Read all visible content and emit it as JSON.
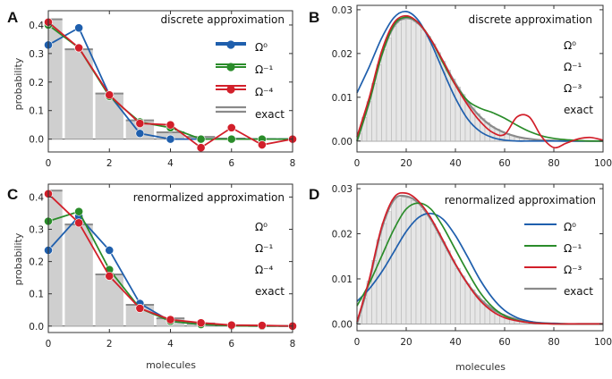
{
  "colors": {
    "omega0": "#1f5fad",
    "omega1": "#2a8c2a",
    "omega3": "#d21f2a",
    "exact": "#8a8a8a",
    "bar_fill": "#cfcfcf",
    "hist_fill": "#e6e6e6"
  },
  "chart_data": [
    {
      "panel": "A",
      "type": "bar",
      "title": "discrete approximation",
      "xlabel": "",
      "ylabel": "probability",
      "xlim": [
        0,
        8
      ],
      "ylim": [
        -0.045,
        0.45
      ],
      "xticks": [
        0,
        2,
        4,
        6,
        8
      ],
      "yticks": [
        0.0,
        0.1,
        0.2,
        0.3,
        0.4
      ],
      "ytick_labels": [
        "0.0",
        "0.1",
        "0.2",
        "0.3",
        "0.4"
      ],
      "bars": {
        "x": [
          0,
          1,
          2,
          3,
          4,
          5,
          6,
          7,
          8
        ],
        "values": [
          0.42,
          0.315,
          0.16,
          0.066,
          0.024,
          0.008,
          0.002,
          0.0005,
          0.0001
        ]
      },
      "series": [
        {
          "name": "Ω⁰",
          "x": [
            0,
            1,
            2,
            3,
            4,
            5,
            6,
            7,
            8
          ],
          "values": [
            0.33,
            0.39,
            0.155,
            0.02,
            0.0,
            0.0,
            0.0,
            0.0,
            0.0
          ]
        },
        {
          "name": "Ω⁻¹",
          "x": [
            0,
            1,
            2,
            3,
            4,
            5,
            6,
            7,
            8
          ],
          "values": [
            0.4,
            0.32,
            0.15,
            0.06,
            0.04,
            0.0,
            0.0,
            0.0,
            0.0
          ]
        },
        {
          "name": "Ω⁻⁴",
          "x": [
            0,
            1,
            2,
            3,
            4,
            5,
            6,
            7,
            8
          ],
          "values": [
            0.41,
            0.32,
            0.155,
            0.055,
            0.05,
            -0.03,
            0.04,
            -0.02,
            0.0
          ]
        }
      ],
      "legend": [
        "Ω⁰",
        "Ω⁻¹",
        "Ω⁻⁴",
        "exact"
      ]
    },
    {
      "panel": "B",
      "type": "line",
      "title": "discrete approximation",
      "xlabel": "",
      "ylabel": "",
      "xlim": [
        0,
        100
      ],
      "ylim": [
        -0.0025,
        0.031
      ],
      "xticks": [
        0,
        20,
        40,
        60,
        80,
        100
      ],
      "yticks": [
        0.0,
        0.01,
        0.02,
        0.03
      ],
      "ytick_labels": [
        "0.00",
        "0.01",
        "0.02",
        "0.03"
      ],
      "x": [
        0,
        5,
        10,
        15,
        20,
        25,
        30,
        35,
        40,
        45,
        50,
        55,
        60,
        65,
        70,
        75,
        80,
        85,
        90,
        95,
        100
      ],
      "series": [
        {
          "name": "Ω⁰",
          "values": [
            0.011,
            0.017,
            0.0235,
            0.0282,
            0.0296,
            0.0275,
            0.0225,
            0.016,
            0.0098,
            0.005,
            0.0022,
            0.0008,
            0.0002,
            0.0,
            0.0,
            0.0,
            0.0,
            0.0,
            0.0,
            0.0,
            0.0
          ]
        },
        {
          "name": "Ω⁻¹",
          "values": [
            0.0,
            0.009,
            0.0195,
            0.0265,
            0.0283,
            0.027,
            0.0232,
            0.0178,
            0.0128,
            0.0092,
            0.0075,
            0.0065,
            0.0052,
            0.0036,
            0.0022,
            0.0012,
            0.0006,
            0.0003,
            0.0001,
            0.0,
            0.0
          ]
        },
        {
          "name": "Ω⁻³",
          "values": [
            0.001,
            0.01,
            0.0205,
            0.027,
            0.0286,
            0.027,
            0.0232,
            0.0182,
            0.0128,
            0.0082,
            0.0045,
            0.002,
            0.0015,
            0.0055,
            0.0055,
            0.001,
            -0.0015,
            -0.0005,
            0.0005,
            0.0008,
            0.0002
          ]
        }
      ],
      "exact": {
        "name": "exact",
        "values": [
          0.0,
          0.009,
          0.0195,
          0.0262,
          0.0281,
          0.0268,
          0.0232,
          0.0182,
          0.0132,
          0.0089,
          0.0056,
          0.0033,
          0.0019,
          0.001,
          0.0005,
          0.0002,
          0.0001,
          0.0,
          0.0,
          0.0,
          0.0
        ]
      },
      "legend": [
        "Ω⁰",
        "Ω⁻¹",
        "Ω⁻³",
        "exact"
      ]
    },
    {
      "panel": "C",
      "type": "bar",
      "title": "renormalized approximation",
      "xlabel": "molecules",
      "ylabel": "probability",
      "xlim": [
        0,
        8
      ],
      "ylim": [
        -0.02,
        0.44
      ],
      "xticks": [
        0,
        2,
        4,
        6,
        8
      ],
      "yticks": [
        0.0,
        0.1,
        0.2,
        0.3,
        0.4
      ],
      "ytick_labels": [
        "0.0",
        "0.1",
        "0.2",
        "0.3",
        "0.4"
      ],
      "bars": {
        "x": [
          0,
          1,
          2,
          3,
          4,
          5,
          6,
          7,
          8
        ],
        "values": [
          0.42,
          0.315,
          0.16,
          0.066,
          0.024,
          0.008,
          0.002,
          0.0005,
          0.0001
        ]
      },
      "series": [
        {
          "name": "Ω⁰",
          "x": [
            0,
            1,
            2,
            3,
            4,
            5,
            6,
            7,
            8
          ],
          "values": [
            0.235,
            0.34,
            0.235,
            0.07,
            0.015,
            0.005,
            0.001,
            0.0,
            0.0
          ]
        },
        {
          "name": "Ω⁻¹",
          "x": [
            0,
            1,
            2,
            3,
            4,
            5,
            6,
            7,
            8
          ],
          "values": [
            0.325,
            0.355,
            0.175,
            0.055,
            0.015,
            0.005,
            0.001,
            0.0,
            0.0
          ]
        },
        {
          "name": "Ω⁻⁴",
          "x": [
            0,
            1,
            2,
            3,
            4,
            5,
            6,
            7,
            8
          ],
          "values": [
            0.41,
            0.32,
            0.155,
            0.055,
            0.02,
            0.01,
            0.003,
            0.002,
            0.0
          ]
        }
      ],
      "legend": [
        "Ω⁰",
        "Ω⁻¹",
        "Ω⁻⁴",
        "exact"
      ]
    },
    {
      "panel": "D",
      "type": "line",
      "title": "renormalized approximation",
      "xlabel": "molecules",
      "ylabel": "",
      "xlim": [
        0,
        100
      ],
      "ylim": [
        -0.0015,
        0.031
      ],
      "xticks": [
        0,
        20,
        40,
        60,
        80,
        100
      ],
      "yticks": [
        0.0,
        0.01,
        0.02,
        0.03
      ],
      "ytick_labels": [
        "0.00",
        "0.01",
        "0.02",
        "0.03"
      ],
      "x": [
        0,
        5,
        10,
        15,
        20,
        25,
        30,
        35,
        40,
        45,
        50,
        55,
        60,
        65,
        70,
        75,
        80,
        85,
        90,
        95,
        100
      ],
      "series": [
        {
          "name": "Ω⁰",
          "values": [
            0.005,
            0.0078,
            0.0115,
            0.016,
            0.0205,
            0.0236,
            0.0245,
            0.0232,
            0.0196,
            0.0148,
            0.0098,
            0.0058,
            0.003,
            0.0014,
            0.0006,
            0.0002,
            0.0001,
            0.0,
            0.0,
            0.0,
            0.0
          ]
        },
        {
          "name": "Ω⁻¹",
          "values": [
            0.004,
            0.009,
            0.015,
            0.021,
            0.0255,
            0.0268,
            0.0255,
            0.0215,
            0.0165,
            0.0115,
            0.007,
            0.0038,
            0.0018,
            0.0008,
            0.0003,
            0.0001,
            0.0,
            0.0,
            0.0,
            0.0,
            0.0
          ]
        },
        {
          "name": "Ω⁻³",
          "values": [
            0.0005,
            0.01,
            0.0215,
            0.028,
            0.029,
            0.0272,
            0.0235,
            0.0185,
            0.0133,
            0.0088,
            0.0052,
            0.0028,
            0.0014,
            0.0007,
            0.0003,
            0.0001,
            0.0,
            0.0,
            0.0,
            0.0,
            0.0
          ]
        }
      ],
      "exact": {
        "name": "exact",
        "values": [
          0.0,
          0.0095,
          0.021,
          0.0275,
          0.0283,
          0.0268,
          0.0232,
          0.0182,
          0.0132,
          0.0089,
          0.0056,
          0.0033,
          0.0019,
          0.001,
          0.0005,
          0.0002,
          0.0001,
          0.0,
          0.0,
          0.0,
          0.0
        ]
      },
      "legend": [
        "Ω⁰",
        "Ω⁻¹",
        "Ω⁻³",
        "exact"
      ]
    }
  ]
}
